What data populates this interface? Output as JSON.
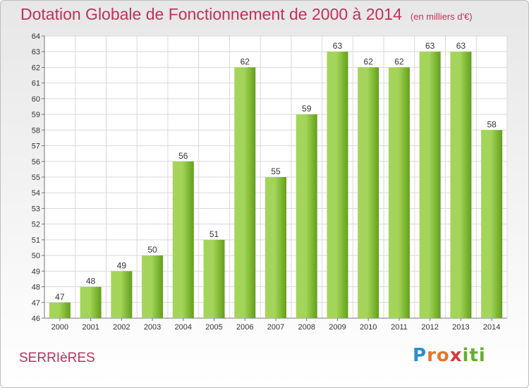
{
  "title": "Dotation Globale de Fonctionnement de 2000 à 2014",
  "subtitle": "(en milliers d'€)",
  "city": "SERRIèRES",
  "logo": {
    "parts": [
      "P",
      "ro",
      "x",
      "iti"
    ]
  },
  "colors": {
    "title": "#c2305b",
    "bar_light": "#a4d55a",
    "bar_dark": "#62a019",
    "grid": "#d9d9d9"
  },
  "chart_data": {
    "type": "bar",
    "title": "Dotation Globale de Fonctionnement de 2000 à 2014",
    "subtitle": "(en milliers d'€)",
    "xlabel": "",
    "ylabel": "",
    "categories": [
      "2000",
      "2001",
      "2002",
      "2003",
      "2004",
      "2005",
      "2006",
      "2007",
      "2008",
      "2009",
      "2010",
      "2011",
      "2012",
      "2013",
      "2014"
    ],
    "values": [
      47,
      48,
      49,
      50,
      56,
      51,
      62,
      55,
      59,
      63,
      62,
      62,
      63,
      63,
      58
    ],
    "ylim": [
      46,
      64
    ],
    "yticks": [
      46,
      47,
      48,
      49,
      50,
      51,
      52,
      53,
      54,
      55,
      56,
      57,
      58,
      59,
      60,
      61,
      62,
      63,
      64
    ],
    "grid": true,
    "legend": "none"
  }
}
